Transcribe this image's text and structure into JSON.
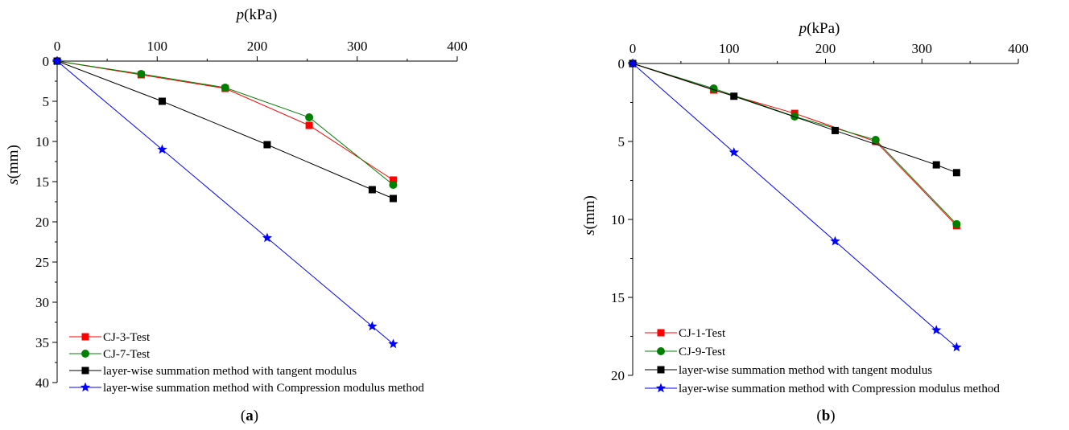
{
  "chart_data": [
    {
      "type": "line",
      "panel": "a",
      "caption": {
        "open": "(",
        "letter": "a",
        "close": ")"
      },
      "xlabel": {
        "var": "p",
        "unit": "(kPa)"
      },
      "ylabel": {
        "var": "s",
        "unit": "(mm)"
      },
      "x_axis_position": "top",
      "y_inverted": true,
      "xlim": [
        0,
        400
      ],
      "ylim": [
        0,
        40
      ],
      "xticks": [
        0,
        100,
        200,
        300,
        400
      ],
      "yticks": [
        0,
        5,
        10,
        15,
        20,
        25,
        30,
        35,
        40
      ],
      "grid": false,
      "legend_position": "bottom-left",
      "series": [
        {
          "name": "CJ-3-Test",
          "color": "#ff0000",
          "marker": "square",
          "points": [
            [
              0,
              0
            ],
            [
              84,
              1.7
            ],
            [
              168,
              3.4
            ],
            [
              252,
              8.0
            ],
            [
              336,
              14.8
            ]
          ]
        },
        {
          "name": "CJ-7-Test",
          "color": "#008000",
          "marker": "circle",
          "points": [
            [
              0,
              0
            ],
            [
              84,
              1.6
            ],
            [
              168,
              3.3
            ],
            [
              252,
              7.0
            ],
            [
              336,
              15.4
            ]
          ]
        },
        {
          "name": "layer-wise summation method with tangent modulus",
          "color": "#000000",
          "marker": "square",
          "points": [
            [
              0,
              0
            ],
            [
              105,
              5.0
            ],
            [
              210,
              10.4
            ],
            [
              315,
              16.0
            ],
            [
              336,
              17.1
            ]
          ]
        },
        {
          "name": "layer-wise summation method with Compression modulus method",
          "color": "#0000ff",
          "marker": "star",
          "points": [
            [
              0,
              0
            ],
            [
              105,
              11.0
            ],
            [
              210,
              22.0
            ],
            [
              315,
              33.0
            ],
            [
              336,
              35.2
            ]
          ]
        }
      ]
    },
    {
      "type": "line",
      "panel": "b",
      "caption": {
        "open": "(",
        "letter": "b",
        "close": ")"
      },
      "xlabel": {
        "var": "p",
        "unit": "(kPa)"
      },
      "ylabel": {
        "var": "s",
        "unit": "(mm)"
      },
      "x_axis_position": "top",
      "y_inverted": true,
      "xlim": [
        0,
        400
      ],
      "ylim": [
        0,
        20
      ],
      "xticks": [
        0,
        100,
        200,
        300,
        400
      ],
      "yticks": [
        0,
        5,
        10,
        15,
        20
      ],
      "grid": false,
      "legend_position": "bottom-left",
      "series": [
        {
          "name": "CJ-1-Test",
          "color": "#ff0000",
          "marker": "square",
          "points": [
            [
              0,
              0
            ],
            [
              84,
              1.7
            ],
            [
              168,
              3.2
            ],
            [
              252,
              5.0
            ],
            [
              336,
              10.4
            ]
          ]
        },
        {
          "name": "CJ-9-Test",
          "color": "#008000",
          "marker": "circle",
          "points": [
            [
              0,
              0
            ],
            [
              84,
              1.6
            ],
            [
              168,
              3.4
            ],
            [
              252,
              4.9
            ],
            [
              336,
              10.3
            ]
          ]
        },
        {
          "name": "layer-wise summation method with tangent modulus",
          "color": "#000000",
          "marker": "square",
          "points": [
            [
              0,
              0
            ],
            [
              105,
              2.1
            ],
            [
              210,
              4.3
            ],
            [
              315,
              6.5
            ],
            [
              336,
              7.0
            ]
          ]
        },
        {
          "name": "layer-wise summation method with Compression modulus method",
          "color": "#0000ff",
          "marker": "star",
          "points": [
            [
              0,
              0
            ],
            [
              105,
              5.7
            ],
            [
              210,
              11.4
            ],
            [
              315,
              17.1
            ],
            [
              336,
              18.2
            ]
          ]
        }
      ]
    }
  ]
}
